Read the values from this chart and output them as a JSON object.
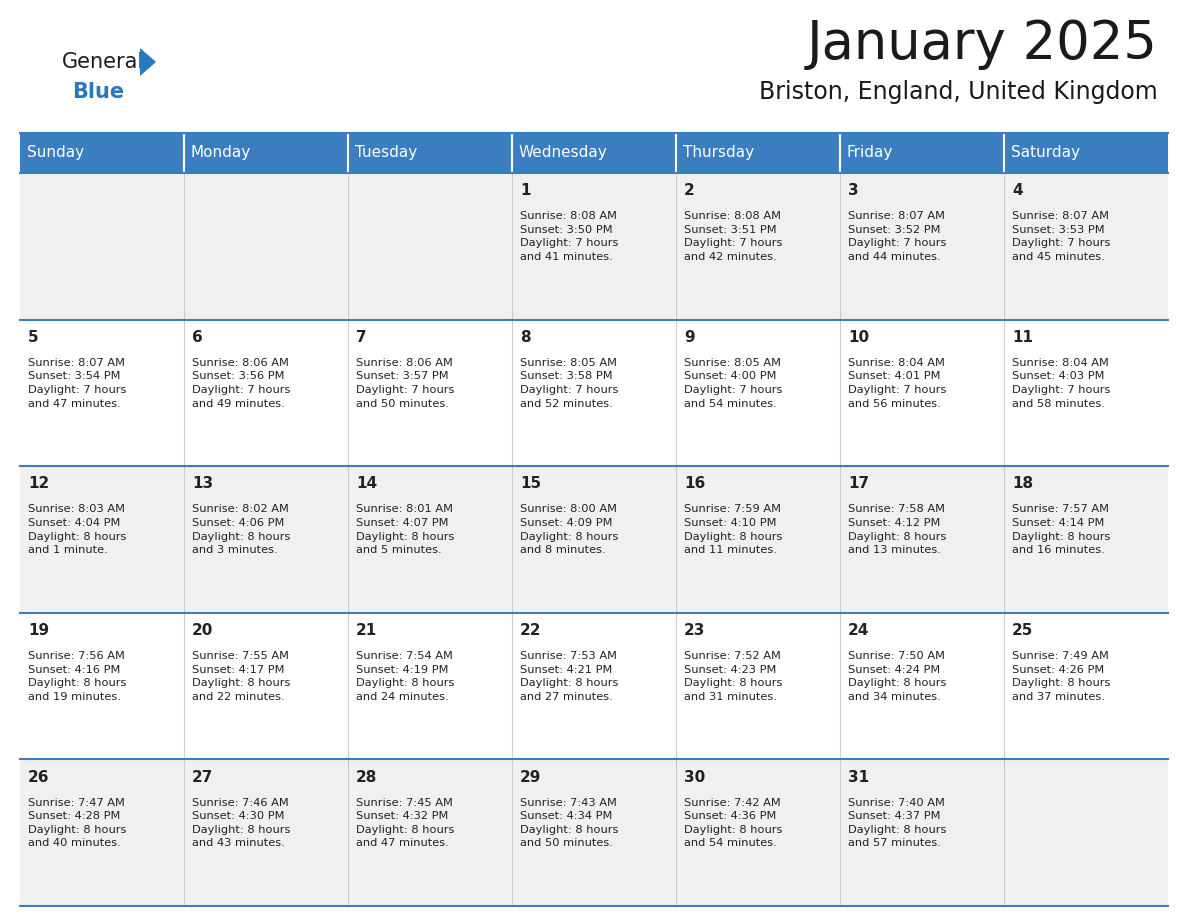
{
  "title": "January 2025",
  "subtitle": "Briston, England, United Kingdom",
  "header_color": "#3a7ebf",
  "header_text_color": "#ffffff",
  "days_of_week": [
    "Sunday",
    "Monday",
    "Tuesday",
    "Wednesday",
    "Thursday",
    "Friday",
    "Saturday"
  ],
  "row_bg_odd": "#f0f0f0",
  "row_bg_even": "#ffffff",
  "cell_border_color": "#3a7ebf",
  "day_number_color": "#222222",
  "info_text_color": "#222222",
  "calendar_data": [
    [
      {
        "day": null,
        "info": null
      },
      {
        "day": null,
        "info": null
      },
      {
        "day": null,
        "info": null
      },
      {
        "day": 1,
        "info": "Sunrise: 8:08 AM\nSunset: 3:50 PM\nDaylight: 7 hours\nand 41 minutes."
      },
      {
        "day": 2,
        "info": "Sunrise: 8:08 AM\nSunset: 3:51 PM\nDaylight: 7 hours\nand 42 minutes."
      },
      {
        "day": 3,
        "info": "Sunrise: 8:07 AM\nSunset: 3:52 PM\nDaylight: 7 hours\nand 44 minutes."
      },
      {
        "day": 4,
        "info": "Sunrise: 8:07 AM\nSunset: 3:53 PM\nDaylight: 7 hours\nand 45 minutes."
      }
    ],
    [
      {
        "day": 5,
        "info": "Sunrise: 8:07 AM\nSunset: 3:54 PM\nDaylight: 7 hours\nand 47 minutes."
      },
      {
        "day": 6,
        "info": "Sunrise: 8:06 AM\nSunset: 3:56 PM\nDaylight: 7 hours\nand 49 minutes."
      },
      {
        "day": 7,
        "info": "Sunrise: 8:06 AM\nSunset: 3:57 PM\nDaylight: 7 hours\nand 50 minutes."
      },
      {
        "day": 8,
        "info": "Sunrise: 8:05 AM\nSunset: 3:58 PM\nDaylight: 7 hours\nand 52 minutes."
      },
      {
        "day": 9,
        "info": "Sunrise: 8:05 AM\nSunset: 4:00 PM\nDaylight: 7 hours\nand 54 minutes."
      },
      {
        "day": 10,
        "info": "Sunrise: 8:04 AM\nSunset: 4:01 PM\nDaylight: 7 hours\nand 56 minutes."
      },
      {
        "day": 11,
        "info": "Sunrise: 8:04 AM\nSunset: 4:03 PM\nDaylight: 7 hours\nand 58 minutes."
      }
    ],
    [
      {
        "day": 12,
        "info": "Sunrise: 8:03 AM\nSunset: 4:04 PM\nDaylight: 8 hours\nand 1 minute."
      },
      {
        "day": 13,
        "info": "Sunrise: 8:02 AM\nSunset: 4:06 PM\nDaylight: 8 hours\nand 3 minutes."
      },
      {
        "day": 14,
        "info": "Sunrise: 8:01 AM\nSunset: 4:07 PM\nDaylight: 8 hours\nand 5 minutes."
      },
      {
        "day": 15,
        "info": "Sunrise: 8:00 AM\nSunset: 4:09 PM\nDaylight: 8 hours\nand 8 minutes."
      },
      {
        "day": 16,
        "info": "Sunrise: 7:59 AM\nSunset: 4:10 PM\nDaylight: 8 hours\nand 11 minutes."
      },
      {
        "day": 17,
        "info": "Sunrise: 7:58 AM\nSunset: 4:12 PM\nDaylight: 8 hours\nand 13 minutes."
      },
      {
        "day": 18,
        "info": "Sunrise: 7:57 AM\nSunset: 4:14 PM\nDaylight: 8 hours\nand 16 minutes."
      }
    ],
    [
      {
        "day": 19,
        "info": "Sunrise: 7:56 AM\nSunset: 4:16 PM\nDaylight: 8 hours\nand 19 minutes."
      },
      {
        "day": 20,
        "info": "Sunrise: 7:55 AM\nSunset: 4:17 PM\nDaylight: 8 hours\nand 22 minutes."
      },
      {
        "day": 21,
        "info": "Sunrise: 7:54 AM\nSunset: 4:19 PM\nDaylight: 8 hours\nand 24 minutes."
      },
      {
        "day": 22,
        "info": "Sunrise: 7:53 AM\nSunset: 4:21 PM\nDaylight: 8 hours\nand 27 minutes."
      },
      {
        "day": 23,
        "info": "Sunrise: 7:52 AM\nSunset: 4:23 PM\nDaylight: 8 hours\nand 31 minutes."
      },
      {
        "day": 24,
        "info": "Sunrise: 7:50 AM\nSunset: 4:24 PM\nDaylight: 8 hours\nand 34 minutes."
      },
      {
        "day": 25,
        "info": "Sunrise: 7:49 AM\nSunset: 4:26 PM\nDaylight: 8 hours\nand 37 minutes."
      }
    ],
    [
      {
        "day": 26,
        "info": "Sunrise: 7:47 AM\nSunset: 4:28 PM\nDaylight: 8 hours\nand 40 minutes."
      },
      {
        "day": 27,
        "info": "Sunrise: 7:46 AM\nSunset: 4:30 PM\nDaylight: 8 hours\nand 43 minutes."
      },
      {
        "day": 28,
        "info": "Sunrise: 7:45 AM\nSunset: 4:32 PM\nDaylight: 8 hours\nand 47 minutes."
      },
      {
        "day": 29,
        "info": "Sunrise: 7:43 AM\nSunset: 4:34 PM\nDaylight: 8 hours\nand 50 minutes."
      },
      {
        "day": 30,
        "info": "Sunrise: 7:42 AM\nSunset: 4:36 PM\nDaylight: 8 hours\nand 54 minutes."
      },
      {
        "day": 31,
        "info": "Sunrise: 7:40 AM\nSunset: 4:37 PM\nDaylight: 8 hours\nand 57 minutes."
      },
      {
        "day": null,
        "info": null
      }
    ]
  ],
  "logo_color_general": "#1a1a1a",
  "logo_color_blue": "#2878be",
  "logo_triangle_color": "#2878be",
  "title_color": "#1a1a1a",
  "subtitle_color": "#1a1a1a"
}
